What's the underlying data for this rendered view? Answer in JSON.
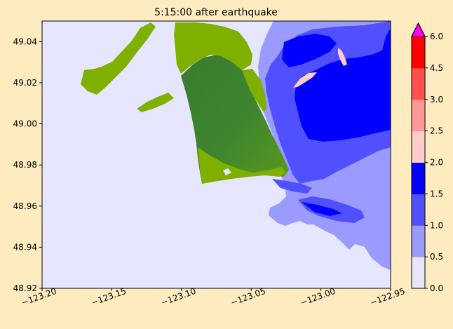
{
  "figure": {
    "background": "#feecc0"
  },
  "chart_data": {
    "type": "heatmap",
    "title": "5:15:00 after earthquake",
    "xlabel": "",
    "ylabel": "",
    "xlim": [
      -123.2,
      -122.95
    ],
    "ylim": [
      48.92,
      49.05
    ],
    "grid": false,
    "x_ticks": [
      {
        "value": -123.2,
        "label": "−123.20"
      },
      {
        "value": -123.15,
        "label": "−123.15"
      },
      {
        "value": -123.1,
        "label": "−123.10"
      },
      {
        "value": -123.05,
        "label": "−123.05"
      },
      {
        "value": -123.0,
        "label": "−123.00"
      },
      {
        "value": -122.95,
        "label": "−122.95"
      }
    ],
    "y_ticks": [
      {
        "value": 48.92,
        "label": "48.92"
      },
      {
        "value": 48.94,
        "label": "48.94"
      },
      {
        "value": 48.96,
        "label": "48.96"
      },
      {
        "value": 48.98,
        "label": "48.98"
      },
      {
        "value": 49.0,
        "label": "49.00"
      },
      {
        "value": 49.02,
        "label": "49.02"
      },
      {
        "value": 49.04,
        "label": "49.04"
      }
    ],
    "water_color": "#e6e6ff",
    "land_colors": {
      "dark": "#3a7d2e",
      "light": "#7fb000"
    },
    "colorbar": {
      "levels": [
        0.0,
        0.5,
        1.0,
        1.5,
        2.0,
        2.5,
        3.0,
        4.5,
        6.0
      ],
      "tick_labels": [
        "0.0",
        "0.5",
        "1.0",
        "1.5",
        "2.0",
        "2.5",
        "3.0",
        "4.5",
        "6.0"
      ],
      "colors": [
        "#e6e6ff",
        "#9b9bff",
        "#5050ff",
        "#0000ff",
        "#ffcccc",
        "#ff9999",
        "#ff5050",
        "#ff0000"
      ],
      "extend_max_color": "#ff00ff"
    }
  }
}
